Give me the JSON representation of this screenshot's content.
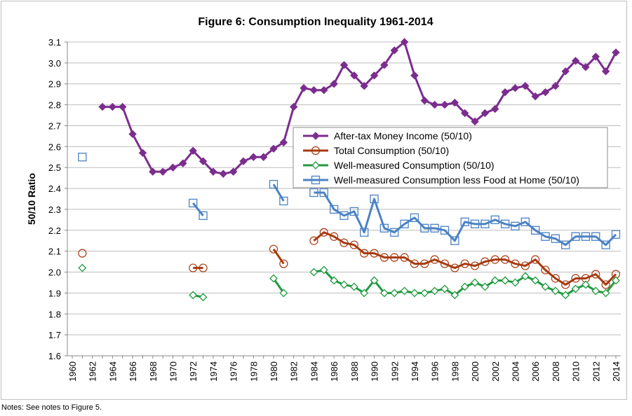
{
  "notes": "Notes:  See notes to Figure 5.",
  "chart_data": {
    "type": "line",
    "title": "Figure 6: Consumption Inequality 1961-2014",
    "xlabel": "",
    "ylabel": "50/10 Ratio",
    "xlim": [
      1960,
      2014
    ],
    "ylim": [
      1.6,
      3.1
    ],
    "y_ticks": [
      1.6,
      1.7,
      1.8,
      1.9,
      2.0,
      2.1,
      2.2,
      2.3,
      2.4,
      2.5,
      2.6,
      2.7,
      2.8,
      2.9,
      3.0,
      3.1
    ],
    "x_ticks": [
      1960,
      1962,
      1964,
      1966,
      1968,
      1970,
      1972,
      1974,
      1976,
      1978,
      1980,
      1982,
      1984,
      1986,
      1988,
      1990,
      1992,
      1994,
      1996,
      1998,
      2000,
      2002,
      2004,
      2006,
      2008,
      2010,
      2012,
      2014
    ],
    "grid": "horizontal",
    "legend_position": "right",
    "series": [
      {
        "name": "After-tax Money Income (50/10)",
        "color": "#7b2d8e",
        "marker": "diamond-filled",
        "x": [
          1963,
          1964,
          1965,
          1966,
          1967,
          1968,
          1969,
          1970,
          1971,
          1972,
          1973,
          1974,
          1975,
          1976,
          1977,
          1978,
          1979,
          1980,
          1981,
          1982,
          1983,
          1984,
          1985,
          1986,
          1987,
          1988,
          1989,
          1990,
          1991,
          1992,
          1993,
          1994,
          1995,
          1996,
          1997,
          1998,
          1999,
          2000,
          2001,
          2002,
          2003,
          2004,
          2005,
          2006,
          2007,
          2008,
          2009,
          2010,
          2011,
          2012,
          2013,
          2014
        ],
        "y": [
          2.79,
          2.79,
          2.79,
          2.66,
          2.57,
          2.48,
          2.48,
          2.5,
          2.52,
          2.58,
          2.53,
          2.48,
          2.47,
          2.48,
          2.53,
          2.55,
          2.55,
          2.59,
          2.62,
          2.79,
          2.88,
          2.87,
          2.87,
          2.9,
          2.99,
          2.94,
          2.89,
          2.94,
          2.99,
          3.06,
          3.1,
          2.94,
          2.82,
          2.8,
          2.8,
          2.81,
          2.76,
          2.72,
          2.76,
          2.78,
          2.86,
          2.88,
          2.89,
          2.84,
          2.86,
          2.89,
          2.96,
          3.01,
          2.98,
          3.03,
          2.96,
          3.05
        ]
      },
      {
        "name": "Total Consumption (50/10)",
        "color": "#a63a10",
        "marker": "circle-open",
        "x": [
          1961,
          1972,
          1973,
          1980,
          1981,
          1984,
          1985,
          1986,
          1987,
          1988,
          1989,
          1990,
          1991,
          1992,
          1993,
          1994,
          1995,
          1996,
          1997,
          1998,
          1999,
          2000,
          2001,
          2002,
          2003,
          2004,
          2005,
          2006,
          2007,
          2008,
          2009,
          2010,
          2011,
          2012,
          2013,
          2014
        ],
        "y": [
          2.09,
          2.02,
          2.02,
          2.11,
          2.04,
          2.15,
          2.19,
          2.17,
          2.14,
          2.13,
          2.09,
          2.09,
          2.07,
          2.07,
          2.07,
          2.04,
          2.04,
          2.06,
          2.04,
          2.02,
          2.04,
          2.03,
          2.05,
          2.06,
          2.06,
          2.04,
          2.03,
          2.06,
          2.01,
          1.97,
          1.94,
          1.97,
          1.97,
          1.99,
          1.94,
          1.99
        ]
      },
      {
        "name": "Well-measured Consumption (50/10)",
        "color": "#1f9a3e",
        "marker": "diamond-open",
        "x": [
          1961,
          1972,
          1973,
          1980,
          1981,
          1984,
          1985,
          1986,
          1987,
          1988,
          1989,
          1990,
          1991,
          1992,
          1993,
          1994,
          1995,
          1996,
          1997,
          1998,
          1999,
          2000,
          2001,
          2002,
          2003,
          2004,
          2005,
          2006,
          2007,
          2008,
          2009,
          2010,
          2011,
          2012,
          2013,
          2014
        ],
        "y": [
          2.02,
          1.89,
          1.88,
          1.97,
          1.9,
          2.0,
          2.01,
          1.96,
          1.94,
          1.93,
          1.9,
          1.96,
          1.9,
          1.9,
          1.91,
          1.9,
          1.9,
          1.91,
          1.92,
          1.89,
          1.93,
          1.95,
          1.93,
          1.96,
          1.96,
          1.95,
          1.98,
          1.96,
          1.93,
          1.91,
          1.89,
          1.92,
          1.94,
          1.91,
          1.9,
          1.96
        ]
      },
      {
        "name": "Well-measured Consumption less Food at Home (50/10)",
        "color": "#4a82c4",
        "marker": "square-open",
        "x": [
          1961,
          1972,
          1973,
          1980,
          1981,
          1984,
          1985,
          1986,
          1987,
          1988,
          1989,
          1990,
          1991,
          1992,
          1993,
          1994,
          1995,
          1996,
          1997,
          1998,
          1999,
          2000,
          2001,
          2002,
          2003,
          2004,
          2005,
          2006,
          2007,
          2008,
          2009,
          2010,
          2011,
          2012,
          2013,
          2014
        ],
        "y": [
          2.55,
          2.33,
          2.27,
          2.42,
          2.34,
          2.38,
          2.38,
          2.3,
          2.27,
          2.29,
          2.19,
          2.35,
          2.21,
          2.19,
          2.23,
          2.26,
          2.21,
          2.21,
          2.2,
          2.15,
          2.24,
          2.23,
          2.23,
          2.25,
          2.23,
          2.22,
          2.24,
          2.2,
          2.17,
          2.16,
          2.13,
          2.17,
          2.17,
          2.17,
          2.13,
          2.18
        ]
      }
    ]
  }
}
